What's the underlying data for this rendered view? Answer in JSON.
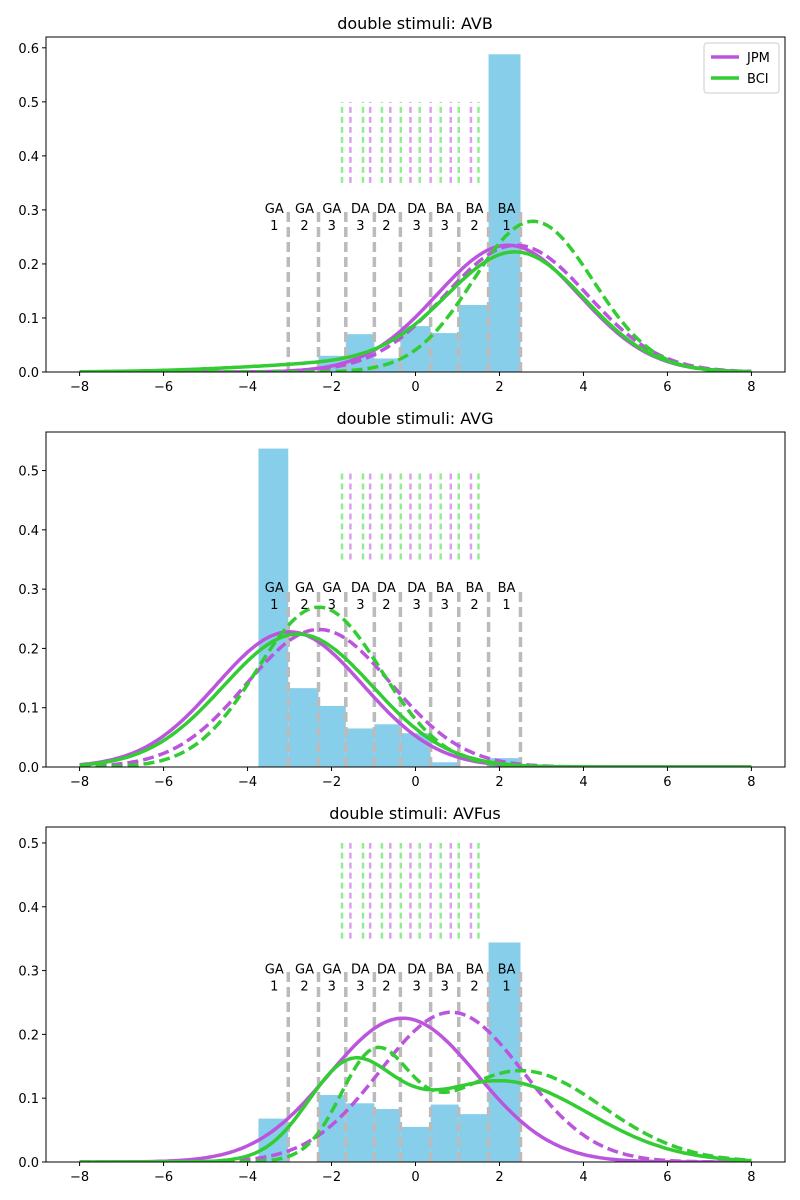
{
  "colors": {
    "hist": "#87ceeb",
    "jpm": "#bb55dd",
    "bci": "#33cc33",
    "jpm_light": "#dda0ee",
    "bci_light": "#90ee90",
    "marker": "#bbbbbb",
    "axis": "#000000"
  },
  "legend": {
    "placement": "top-right",
    "entries": [
      {
        "name": "JPM",
        "color": "#bb55dd"
      },
      {
        "name": "BCI",
        "color": "#33cc33"
      }
    ]
  },
  "chart_data": [
    {
      "type": "histogram+line",
      "title": "double stimuli: AVB",
      "xlim": [
        -8.8,
        8.8
      ],
      "ylim": [
        0,
        0.62
      ],
      "xticks": [
        -8,
        -6,
        -4,
        -2,
        0,
        2,
        4,
        6,
        8
      ],
      "yticks": [
        0.0,
        0.1,
        0.2,
        0.3,
        0.4,
        0.5,
        0.6
      ],
      "show_legend": true,
      "histogram": {
        "bin_edges": [
          -3.74,
          -3.03,
          -2.31,
          -1.66,
          -0.98,
          -0.36,
          0.36,
          1.03,
          1.74,
          2.5
        ],
        "values": [
          0.0,
          0.0,
          0.03,
          0.07,
          0.025,
          0.085,
          0.072,
          0.124,
          0.588
        ]
      },
      "marker_lines": {
        "labels": [
          [
            "GA",
            "1"
          ],
          [
            "GA",
            "2"
          ],
          [
            "GA",
            "3"
          ],
          [
            "DA",
            "3"
          ],
          [
            "DA",
            "2"
          ],
          [
            "DA",
            "3"
          ],
          [
            "BA",
            "3"
          ],
          [
            "BA",
            "2"
          ],
          [
            "BA",
            "1"
          ]
        ],
        "x": [
          -3.03,
          -2.31,
          -1.66,
          -0.98,
          -0.36,
          0.36,
          1.03,
          1.74,
          2.5
        ],
        "height": 0.3
      },
      "short_lines": {
        "jpm_x": [
          -1.55,
          -1.08,
          -0.6,
          -0.12,
          0.36,
          0.84,
          1.32
        ],
        "bci_x": [
          -1.75,
          -1.25,
          -0.8,
          -0.35,
          0.1,
          0.6,
          1.03,
          1.5
        ],
        "range": [
          0.35,
          0.5
        ]
      },
      "series": [
        {
          "name": "JPM",
          "style": "solid",
          "components": [
            {
              "w": 1,
              "mu": 2.2,
              "sigma": 1.7
            }
          ]
        },
        {
          "name": "JPM",
          "style": "dashed",
          "components": [
            {
              "w": 1,
              "mu": 2.4,
              "sigma": 1.7
            }
          ]
        },
        {
          "name": "BCI",
          "style": "solid",
          "components": [
            {
              "w": 0.9,
              "mu": 2.4,
              "sigma": 1.65
            },
            {
              "w": 0.1,
              "mu": -1.5,
              "sigma": 2.5
            }
          ]
        },
        {
          "name": "BCI",
          "style": "dashed",
          "components": [
            {
              "w": 1,
              "mu": 2.8,
              "sigma": 1.43
            }
          ]
        }
      ]
    },
    {
      "type": "histogram+line",
      "title": "double stimuli: AVG",
      "xlim": [
        -8.8,
        8.8
      ],
      "ylim": [
        0,
        0.565
      ],
      "xticks": [
        -8,
        -6,
        -4,
        -2,
        0,
        2,
        4,
        6,
        8
      ],
      "yticks": [
        0.0,
        0.1,
        0.2,
        0.3,
        0.4,
        0.5
      ],
      "show_legend": false,
      "histogram": {
        "bin_edges": [
          -3.74,
          -3.03,
          -2.31,
          -1.66,
          -0.98,
          -0.36,
          0.36,
          1.03,
          1.74,
          2.5
        ],
        "values": [
          0.537,
          0.133,
          0.103,
          0.065,
          0.072,
          0.057,
          0.008,
          0.0,
          0.015
        ]
      },
      "marker_lines": {
        "labels": [
          [
            "GA",
            "1"
          ],
          [
            "GA",
            "2"
          ],
          [
            "GA",
            "3"
          ],
          [
            "DA",
            "3"
          ],
          [
            "DA",
            "2"
          ],
          [
            "DA",
            "3"
          ],
          [
            "BA",
            "3"
          ],
          [
            "BA",
            "2"
          ],
          [
            "BA",
            "1"
          ]
        ],
        "x": [
          -3.03,
          -2.31,
          -1.66,
          -0.98,
          -0.36,
          0.36,
          1.03,
          1.74,
          2.5
        ],
        "height": 0.3
      },
      "short_lines": {
        "jpm_x": [
          -1.55,
          -1.08,
          -0.6,
          -0.12,
          0.36,
          0.84,
          1.32
        ],
        "bci_x": [
          -1.75,
          -1.25,
          -0.8,
          -0.35,
          0.1,
          0.6,
          1.03,
          1.5
        ],
        "range": [
          0.35,
          0.5
        ]
      },
      "series": [
        {
          "name": "JPM",
          "style": "solid",
          "components": [
            {
              "w": 1,
              "mu": -3.0,
              "sigma": 1.75
            }
          ]
        },
        {
          "name": "JPM",
          "style": "dashed",
          "components": [
            {
              "w": 1,
              "mu": -2.3,
              "sigma": 1.72
            }
          ]
        },
        {
          "name": "BCI",
          "style": "solid",
          "components": [
            {
              "w": 1,
              "mu": -2.8,
              "sigma": 1.78
            }
          ]
        },
        {
          "name": "BCI",
          "style": "dashed",
          "components": [
            {
              "w": 1,
              "mu": -2.3,
              "sigma": 1.48
            }
          ]
        }
      ]
    },
    {
      "type": "histogram+line",
      "title": "double stimuli: AVFus",
      "xlim": [
        -8.8,
        8.8
      ],
      "ylim": [
        0,
        0.525
      ],
      "xticks": [
        -8,
        -6,
        -4,
        -2,
        0,
        2,
        4,
        6,
        8
      ],
      "yticks": [
        0.0,
        0.1,
        0.2,
        0.3,
        0.4,
        0.5
      ],
      "show_legend": false,
      "histogram": {
        "bin_edges": [
          -3.74,
          -3.03,
          -2.31,
          -1.66,
          -0.98,
          -0.36,
          0.36,
          1.03,
          1.74,
          2.5
        ],
        "values": [
          0.068,
          0.0,
          0.105,
          0.092,
          0.083,
          0.055,
          0.09,
          0.075,
          0.344
        ]
      },
      "marker_lines": {
        "labels": [
          [
            "GA",
            "1"
          ],
          [
            "GA",
            "2"
          ],
          [
            "GA",
            "3"
          ],
          [
            "DA",
            "3"
          ],
          [
            "DA",
            "2"
          ],
          [
            "DA",
            "3"
          ],
          [
            "BA",
            "3"
          ],
          [
            "BA",
            "2"
          ],
          [
            "BA",
            "1"
          ]
        ],
        "x": [
          -3.03,
          -2.31,
          -1.66,
          -0.98,
          -0.36,
          0.36,
          1.03,
          1.74,
          2.5
        ],
        "height": 0.3
      },
      "short_lines": {
        "jpm_x": [
          -1.55,
          -1.08,
          -0.6,
          -0.12,
          0.36,
          0.84,
          1.32
        ],
        "bci_x": [
          -1.75,
          -1.25,
          -0.8,
          -0.35,
          0.1,
          0.6,
          1.03,
          1.5
        ],
        "range": [
          0.35,
          0.5
        ]
      },
      "series": [
        {
          "name": "JPM",
          "style": "solid",
          "components": [
            {
              "w": 1,
              "mu": -0.3,
              "sigma": 1.77
            }
          ]
        },
        {
          "name": "JPM",
          "style": "dashed",
          "components": [
            {
              "w": 1,
              "mu": 0.85,
              "sigma": 1.7
            }
          ]
        },
        {
          "name": "BCI",
          "style": "solid",
          "components": [
            {
              "w": 0.33,
              "mu": -1.6,
              "sigma": 1.0
            },
            {
              "w": 0.67,
              "mu": 2.0,
              "sigma": 2.1
            }
          ]
        },
        {
          "name": "BCI",
          "style": "dashed",
          "components": [
            {
              "w": 0.3,
              "mu": -1.0,
              "sigma": 0.8
            },
            {
              "w": 0.7,
              "mu": 2.5,
              "sigma": 1.95
            }
          ]
        }
      ]
    }
  ]
}
